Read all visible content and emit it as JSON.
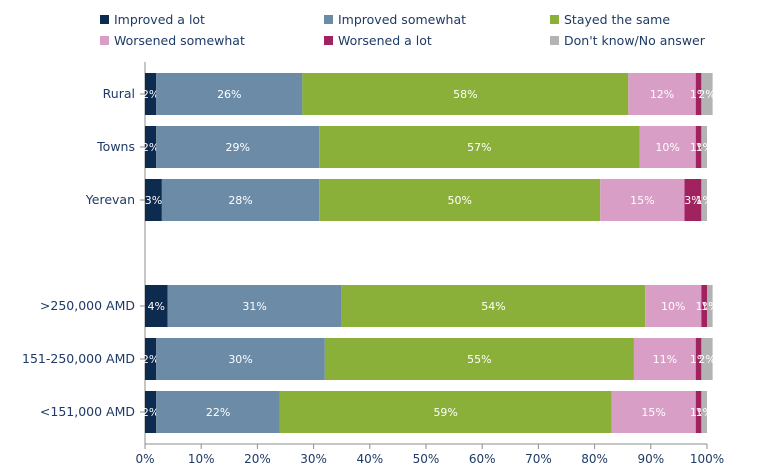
{
  "chart_data": {
    "type": "bar",
    "orientation": "horizontal",
    "stacked": true,
    "categories": [
      "Rural",
      "Towns",
      "Yerevan",
      "",
      ">250,000 AMD",
      "151-250,000 AMD",
      "<151,000 AMD"
    ],
    "series": [
      {
        "name": "Improved a lot",
        "color": "#0d2a4f",
        "values": [
          2,
          2,
          3,
          null,
          4,
          2,
          2
        ]
      },
      {
        "name": "Improved somewhat",
        "color": "#6c8ba6",
        "values": [
          26,
          29,
          28,
          null,
          31,
          30,
          22
        ]
      },
      {
        "name": "Stayed the same",
        "color": "#8bb039",
        "values": [
          58,
          57,
          50,
          null,
          54,
          55,
          59
        ]
      },
      {
        "name": "Worsened somewhat",
        "color": "#d99ec6",
        "values": [
          12,
          10,
          15,
          null,
          10,
          11,
          15
        ]
      },
      {
        "name": "Worsened a lot",
        "color": "#a0235f",
        "values": [
          1,
          1,
          3,
          null,
          1,
          1,
          1
        ]
      },
      {
        "name": "Don't know/No answer",
        "color": "#b3b3b3",
        "values": [
          2,
          1,
          1,
          null,
          1,
          2,
          1
        ]
      }
    ],
    "data_labels": [
      [
        "2%",
        "26%",
        "58%",
        "12%",
        "1%",
        "2%"
      ],
      [
        "2%",
        "29%",
        "57%",
        "10%",
        "1%",
        "1%"
      ],
      [
        "3%",
        "28%",
        "50%",
        "15%",
        "3%",
        "1%"
      ],
      null,
      [
        "4%",
        "31%",
        "54%",
        "10%",
        "1%",
        "1%"
      ],
      [
        "2%",
        "30%",
        "55%",
        "11%",
        "1%",
        "2%"
      ],
      [
        "2%",
        "22%",
        "59%",
        "15%",
        "1%",
        "1%"
      ]
    ],
    "xlim": [
      0,
      100
    ],
    "x_ticks": [
      "0%",
      "10%",
      "20%",
      "30%",
      "40%",
      "50%",
      "60%",
      "70%",
      "80%",
      "90%",
      "100%"
    ],
    "legend_position": "top",
    "grid": false,
    "title": "",
    "xlabel": "",
    "ylabel": ""
  }
}
